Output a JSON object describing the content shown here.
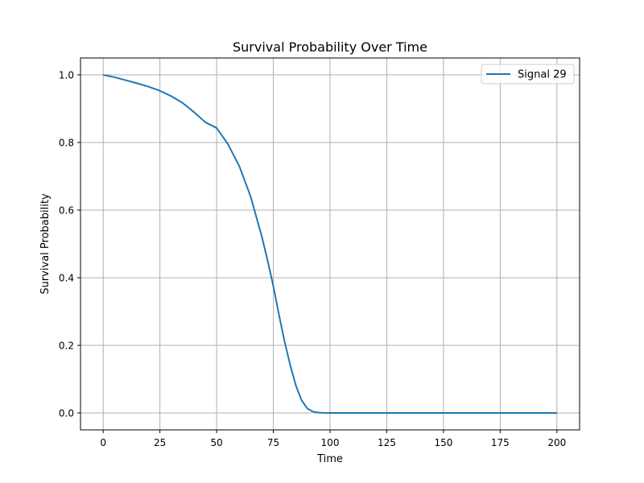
{
  "chart_data": {
    "type": "line",
    "title": "Survival Probability Over Time",
    "xlabel": "Time",
    "ylabel": "Survival Probability",
    "xlim": [
      -10,
      210
    ],
    "ylim": [
      -0.05,
      1.05
    ],
    "xticks": [
      0,
      25,
      50,
      75,
      100,
      125,
      150,
      175,
      200
    ],
    "yticks": [
      0.0,
      0.2,
      0.4,
      0.6,
      0.8,
      1.0
    ],
    "ytick_labels": [
      "0.0",
      "0.2",
      "0.4",
      "0.6",
      "0.8",
      "1.0"
    ],
    "grid": true,
    "legend_position": "top-right",
    "series": [
      {
        "name": "Signal 29",
        "color": "#1f77b4",
        "x": [
          0,
          5,
          10,
          15,
          20,
          25,
          30,
          35,
          40,
          45,
          50,
          55,
          60,
          65,
          70,
          72.5,
          75,
          77.5,
          80,
          82.5,
          85,
          87.5,
          90,
          92.5,
          95,
          97.5,
          100,
          110,
          125,
          150,
          175,
          200
        ],
        "y": [
          1.0,
          0.993,
          0.984,
          0.975,
          0.965,
          0.953,
          0.937,
          0.917,
          0.89,
          0.86,
          0.843,
          0.795,
          0.73,
          0.64,
          0.52,
          0.45,
          0.375,
          0.29,
          0.21,
          0.14,
          0.08,
          0.037,
          0.013,
          0.004,
          0.0008,
          0.0002,
          0.0,
          0.0,
          0.0,
          0.0,
          0.0,
          0.0
        ]
      }
    ]
  }
}
